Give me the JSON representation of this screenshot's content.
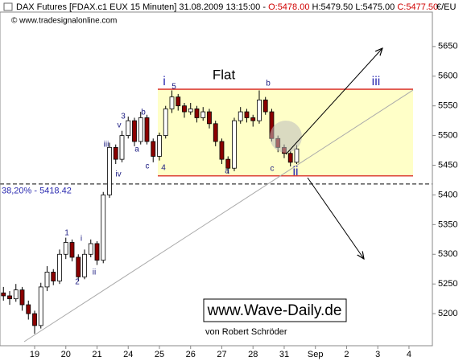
{
  "chart_data": {
    "type": "candlestick",
    "header": {
      "instrument": "DAX Futures [FDAX.c1 EUX  15 Minuten] 31.08.2009 13:15:00 -",
      "open_label": "O:5478.00",
      "high_low": "H:5479.50 L:5475.00",
      "close_label": "C:5477.50"
    },
    "currency": "€/EU",
    "copyright": "© www.tradesignalonline.com",
    "series": [
      {
        "x": [
          -1.0,
          -0.8,
          -0.6,
          -0.4,
          -0.2,
          0.0,
          0.2,
          0.4,
          0.6,
          0.8,
          1.0,
          1.2,
          1.4,
          1.6,
          1.8,
          2.0,
          2.2,
          2.4,
          2.6,
          2.8,
          3.0,
          3.2,
          3.4,
          3.6,
          3.8,
          4.0,
          4.2,
          4.4,
          4.6,
          4.8,
          5.0,
          5.2,
          5.4,
          5.6,
          5.8,
          6.0,
          6.2,
          6.4,
          6.6,
          6.8,
          7.0,
          7.2,
          7.4,
          7.6,
          7.8,
          8.0,
          8.2,
          8.4
        ],
        "open": [
          5235,
          5230,
          5225,
          5240,
          5215,
          5200,
          5180,
          5245,
          5270,
          5255,
          5300,
          5320,
          5295,
          5262,
          5300,
          5318,
          5290,
          5400,
          5480,
          5460,
          5500,
          5525,
          5490,
          5530,
          5490,
          5465,
          5500,
          5545,
          5565,
          5550,
          5540,
          5545,
          5530,
          5540,
          5520,
          5490,
          5460,
          5445,
          5525,
          5540,
          5530,
          5525,
          5560,
          5540,
          5495,
          5480,
          5470,
          5455
        ],
        "high": [
          5245,
          5238,
          5250,
          5245,
          5222,
          5205,
          5252,
          5280,
          5275,
          5308,
          5328,
          5325,
          5300,
          5308,
          5325,
          5322,
          5405,
          5488,
          5485,
          5508,
          5532,
          5530,
          5540,
          5535,
          5495,
          5505,
          5550,
          5576,
          5570,
          5555,
          5555,
          5550,
          5548,
          5545,
          5525,
          5495,
          5465,
          5530,
          5548,
          5545,
          5535,
          5576,
          5565,
          5545,
          5500,
          5485,
          5474,
          5484
        ],
        "low": [
          5222,
          5215,
          5220,
          5205,
          5190,
          5166,
          5175,
          5238,
          5248,
          5250,
          5292,
          5288,
          5255,
          5258,
          5295,
          5282,
          5285,
          5395,
          5452,
          5455,
          5495,
          5482,
          5485,
          5485,
          5455,
          5458,
          5495,
          5538,
          5542,
          5530,
          5535,
          5522,
          5525,
          5512,
          5482,
          5452,
          5436,
          5440,
          5520,
          5522,
          5515,
          5520,
          5535,
          5490,
          5472,
          5462,
          5448,
          5452
        ],
        "close": [
          5230,
          5225,
          5240,
          5215,
          5200,
          5180,
          5245,
          5270,
          5255,
          5300,
          5320,
          5295,
          5262,
          5300,
          5318,
          5290,
          5400,
          5480,
          5460,
          5500,
          5525,
          5490,
          5530,
          5490,
          5465,
          5500,
          5545,
          5565,
          5550,
          5540,
          5545,
          5530,
          5540,
          5520,
          5490,
          5460,
          5445,
          5525,
          5540,
          5530,
          5525,
          5560,
          5540,
          5495,
          5480,
          5470,
          5455,
          5477.5
        ],
        "up_color": "#ffffff",
        "down_color": "#8b0000",
        "wick_color": "#000000"
      }
    ],
    "xlim": [
      -1.11,
      12.75
    ],
    "xticks": [
      {
        "value": 0,
        "label": "19"
      },
      {
        "value": 1,
        "label": "20"
      },
      {
        "value": 2,
        "label": "21"
      },
      {
        "value": 3,
        "label": "24"
      },
      {
        "value": 4,
        "label": "25"
      },
      {
        "value": 5,
        "label": "26"
      },
      {
        "value": 6,
        "label": "27"
      },
      {
        "value": 7,
        "label": "28"
      },
      {
        "value": 8,
        "label": "31"
      },
      {
        "value": 9,
        "label": "Sep"
      },
      {
        "value": 10,
        "label": "2"
      },
      {
        "value": 11,
        "label": "3"
      },
      {
        "value": 12,
        "label": "4"
      }
    ],
    "ylim": [
      5146,
      5708
    ],
    "yticks": [
      5200,
      5250,
      5300,
      5350,
      5400,
      5450,
      5500,
      5550,
      5600,
      5650
    ],
    "flat_zone": [
      5432,
      5578
    ],
    "hline": {
      "value": 5418.42,
      "label": "38,20% - 5418.42"
    },
    "annotations": [
      "1",
      "2",
      "i",
      "ii",
      "iii",
      "iv",
      "v",
      "3",
      "a",
      "b",
      "c",
      "4",
      "5",
      "a",
      "b",
      "c",
      "i",
      "iii",
      "ii",
      "Flat"
    ],
    "branding": {
      "site": "www.Wave-Daily.de",
      "author": "von Robert Schröder"
    }
  }
}
